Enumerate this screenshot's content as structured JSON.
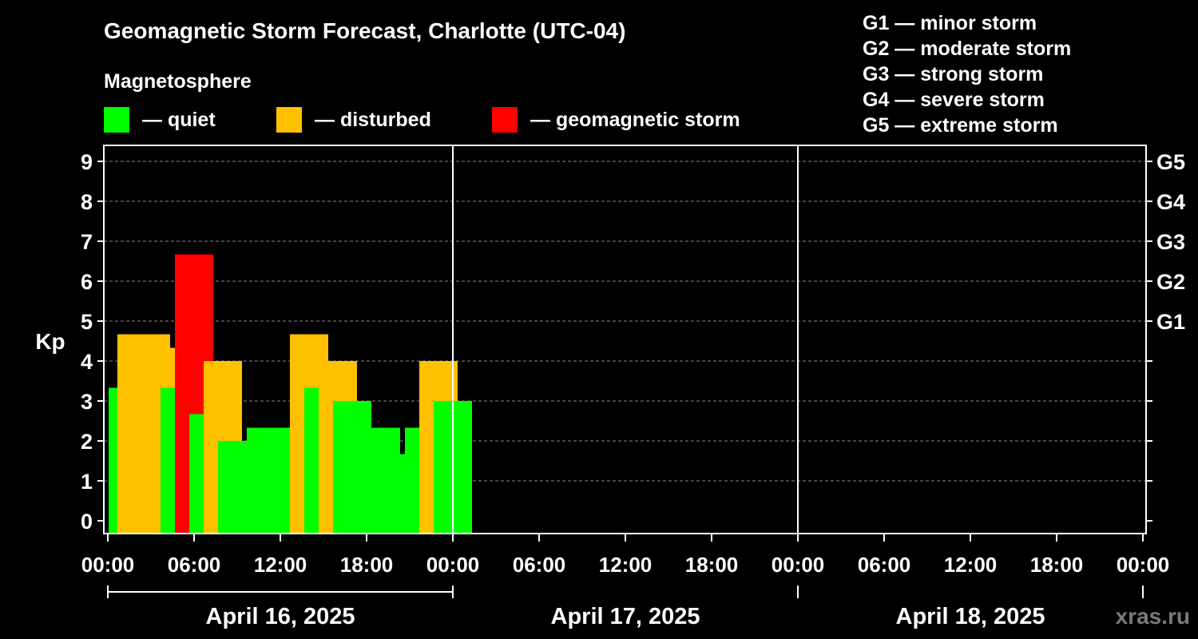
{
  "chart_data": {
    "type": "bar",
    "title": "Geomagnetic Storm Forecast, Charlotte (UTC-04)",
    "legend": {
      "title": "Magnetosphere",
      "items": [
        {
          "label": "— quiet",
          "color": "#00ff00"
        },
        {
          "label": "— disturbed",
          "color": "#ffc000"
        },
        {
          "label": "— geomagnetic storm",
          "color": "#ff0000"
        }
      ]
    },
    "storm_scale": [
      "G1 — minor storm",
      "G2 — moderate storm",
      "G3 — strong storm",
      "G4 — severe storm",
      "G5 — extreme storm"
    ],
    "ylabel": "Kp",
    "ylim": [
      0,
      9
    ],
    "yticks": [
      "0",
      "1",
      "2",
      "3",
      "4",
      "5",
      "6",
      "7",
      "8",
      "9"
    ],
    "right_ticks": [
      {
        "kp": 5,
        "label": "G1"
      },
      {
        "kp": 6,
        "label": "G2"
      },
      {
        "kp": 7,
        "label": "G3"
      },
      {
        "kp": 8,
        "label": "G4"
      },
      {
        "kp": 9,
        "label": "G5"
      }
    ],
    "xtick_labels": [
      "00:00",
      "06:00",
      "12:00",
      "18:00",
      "00:00",
      "06:00",
      "12:00",
      "18:00",
      "00:00",
      "06:00",
      "12:00",
      "18:00",
      "00:00"
    ],
    "days": [
      "April 16, 2025",
      "April 17, 2025",
      "April 18, 2025"
    ],
    "values": [
      3.33,
      3.33,
      4.67,
      4.67,
      4.33,
      3.33,
      6.67,
      2.67,
      4.0,
      2.0,
      1.67,
      2.33,
      2.33,
      2.33,
      4.67,
      3.33,
      4.0,
      3.0,
      2.0,
      2.33,
      1.67,
      1.67,
      2.33,
      4.0,
      3.0
    ],
    "colors": {
      "quiet": "#00ff00",
      "disturbed": "#ffc000",
      "storm": "#ff0000",
      "axis": "#ffffff",
      "grid": "#888888"
    }
  },
  "watermark": "xras.ru"
}
